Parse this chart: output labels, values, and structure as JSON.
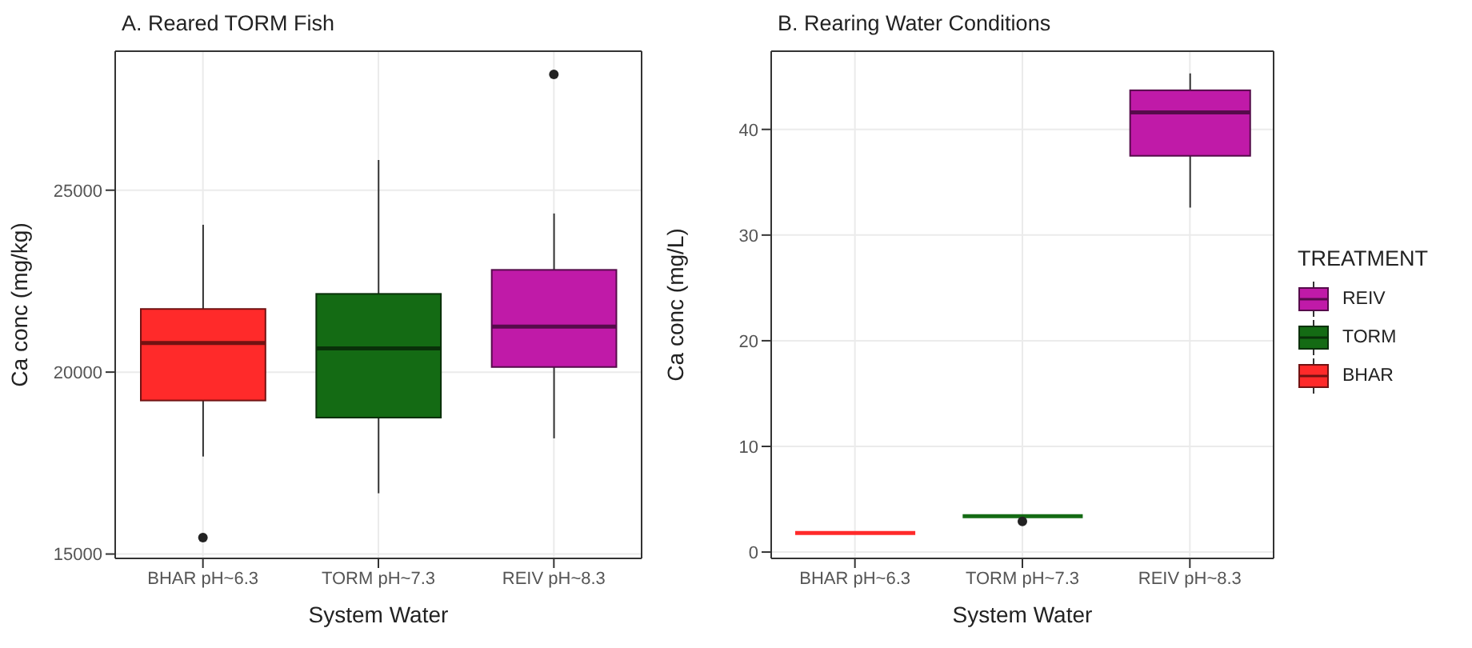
{
  "chart_data": [
    {
      "type": "box",
      "title": "A. Reared TORM Fish",
      "xlabel": "System Water",
      "ylabel": "Ca conc (mg/kg)",
      "categories": [
        "BHAR pH~6.3",
        "TORM pH~7.3",
        "REIV pH~8.3"
      ],
      "colors": [
        "#ff2a2a",
        "#146b14",
        "#c01aa8"
      ],
      "boxes": [
        {
          "low": 17680,
          "q1": 19220,
          "median": 20800,
          "q3": 21735,
          "high": 24050,
          "outliers": [
            15450
          ]
        },
        {
          "low": 16670,
          "q1": 18750,
          "median": 20650,
          "q3": 22150,
          "high": 25830
        },
        {
          "low": 18180,
          "q1": 20140,
          "median": 21250,
          "q3": 22810,
          "high": 24360,
          "outliers": [
            28180
          ]
        }
      ],
      "ylim": [
        14880,
        28820
      ],
      "yticks": [
        15000,
        20000,
        25000
      ],
      "grid": true,
      "legend": false
    },
    {
      "type": "box",
      "title": "B. Rearing Water Conditions",
      "xlabel": "System Water",
      "ylabel": "Ca conc (mg/L)",
      "categories": [
        "BHAR pH~6.3",
        "TORM pH~7.3",
        "REIV pH~8.3"
      ],
      "legend_title": "TREATMENT",
      "series": [
        {
          "name": "REIV",
          "color": "#c01aa8",
          "boxes": [
            null,
            null,
            {
              "low": 32.6,
              "q1": 37.5,
              "median": 41.6,
              "q3": 43.7,
              "high": 45.3
            }
          ]
        },
        {
          "name": "TORM",
          "color": "#146b14",
          "boxes": [
            null,
            {
              "low": 3.4,
              "q1": 3.4,
              "median": 3.4,
              "q3": 3.4,
              "high": 3.4,
              "outliers": [
                2.9
              ]
            },
            null
          ]
        },
        {
          "name": "BHAR",
          "color": "#ff2a2a",
          "boxes": [
            {
              "low": 1.8,
              "q1": 1.8,
              "median": 1.8,
              "q3": 1.8,
              "high": 1.8
            },
            null,
            null
          ]
        }
      ],
      "ylim": [
        -0.6,
        47.4
      ],
      "yticks": [
        0,
        10,
        20,
        30,
        40
      ],
      "grid": true,
      "legend": "right"
    }
  ]
}
